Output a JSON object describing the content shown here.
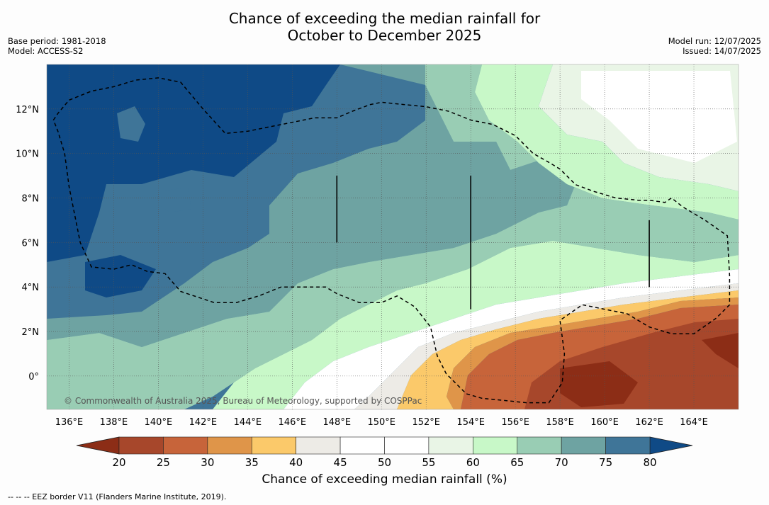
{
  "title": {
    "line1": "Chance of exceeding the median rainfall for",
    "line2": "October to December 2025"
  },
  "meta_left": {
    "base_period": "Base period: 1981-2018",
    "model": "Model: ACCESS-S2"
  },
  "meta_right": {
    "model_run": "Model run: 12/07/2025",
    "issued": "Issued: 14/07/2025"
  },
  "map": {
    "lon_range": [
      135.0,
      166.0
    ],
    "lat_range": [
      -1.5,
      14.0
    ],
    "lat_labels": [
      {
        "value": 0,
        "text": "0°"
      },
      {
        "value": 2,
        "text": "2°N"
      },
      {
        "value": 4,
        "text": "4°N"
      },
      {
        "value": 6,
        "text": "6°N"
      },
      {
        "value": 8,
        "text": "8°N"
      },
      {
        "value": 10,
        "text": "10°N"
      },
      {
        "value": 12,
        "text": "12°N"
      }
    ],
    "lon_labels": [
      {
        "value": 136,
        "text": "136°E"
      },
      {
        "value": 138,
        "text": "138°E"
      },
      {
        "value": 140,
        "text": "140°E"
      },
      {
        "value": 142,
        "text": "142°E"
      },
      {
        "value": 144,
        "text": "144°E"
      },
      {
        "value": 146,
        "text": "146°E"
      },
      {
        "value": 148,
        "text": "148°E"
      },
      {
        "value": 150,
        "text": "150°E"
      },
      {
        "value": 152,
        "text": "152°E"
      },
      {
        "value": 154,
        "text": "154°E"
      },
      {
        "value": 156,
        "text": "156°E"
      },
      {
        "value": 158,
        "text": "158°E"
      },
      {
        "value": 160,
        "text": "160°E"
      },
      {
        "value": 162,
        "text": "162°E"
      },
      {
        "value": 164,
        "text": "164°E"
      }
    ],
    "gridlines": "dotted",
    "copyright": "© Commonwealth of Australia 2025, Bureau of Meteorology, supported by COSPPac",
    "eez_boundary_lonlat": [
      [
        135.3,
        11.5
      ],
      [
        135.5,
        11.8
      ],
      [
        136.0,
        12.4
      ],
      [
        137.0,
        12.8
      ],
      [
        138.0,
        13.0
      ],
      [
        139.0,
        13.3
      ],
      [
        140.0,
        13.4
      ],
      [
        141.0,
        13.2
      ],
      [
        142.0,
        12.0
      ],
      [
        143.0,
        10.9
      ],
      [
        144.0,
        11.0
      ],
      [
        145.0,
        11.2
      ],
      [
        146.0,
        11.4
      ],
      [
        147.0,
        11.6
      ],
      [
        148.0,
        11.6
      ],
      [
        148.7,
        11.9
      ],
      [
        149.5,
        12.2
      ],
      [
        150.0,
        12.3
      ],
      [
        151.0,
        12.2
      ],
      [
        152.0,
        12.1
      ],
      [
        153.0,
        11.9
      ],
      [
        154.0,
        11.5
      ],
      [
        155.0,
        11.3
      ],
      [
        156.0,
        10.8
      ],
      [
        156.8,
        10.0
      ],
      [
        157.5,
        9.6
      ],
      [
        158.0,
        9.3
      ],
      [
        158.7,
        8.6
      ],
      [
        159.5,
        8.3
      ],
      [
        160.5,
        8.0
      ],
      [
        161.5,
        7.9
      ],
      [
        162.0,
        7.9
      ],
      [
        162.7,
        7.8
      ],
      [
        163.0,
        8.0
      ],
      [
        163.5,
        7.6
      ],
      [
        164.5,
        7.0
      ],
      [
        165.5,
        6.3
      ],
      [
        165.6,
        4.5
      ],
      [
        165.6,
        3.2
      ],
      [
        165.0,
        2.6
      ],
      [
        164.0,
        1.9
      ],
      [
        163.0,
        1.9
      ],
      [
        162.0,
        2.2
      ],
      [
        161.0,
        2.8
      ],
      [
        160.0,
        3.0
      ],
      [
        159.0,
        3.2
      ],
      [
        158.0,
        2.5
      ],
      [
        158.2,
        1.0
      ],
      [
        158.1,
        -0.3
      ],
      [
        157.5,
        -1.2
      ],
      [
        156.5,
        -1.2
      ],
      [
        155.5,
        -1.1
      ],
      [
        154.5,
        -1.0
      ],
      [
        153.8,
        -0.8
      ],
      [
        152.9,
        0.1
      ],
      [
        152.5,
        0.9
      ],
      [
        152.2,
        2.2
      ],
      [
        151.5,
        3.1
      ],
      [
        150.7,
        3.6
      ],
      [
        150.0,
        3.3
      ],
      [
        149.0,
        3.3
      ],
      [
        148.0,
        3.7
      ],
      [
        147.5,
        4.0
      ],
      [
        146.5,
        4.0
      ],
      [
        145.5,
        4.0
      ],
      [
        144.5,
        3.6
      ],
      [
        143.5,
        3.3
      ],
      [
        142.5,
        3.3
      ],
      [
        141.0,
        3.8
      ],
      [
        140.3,
        4.6
      ],
      [
        139.5,
        4.7
      ],
      [
        138.8,
        5.0
      ],
      [
        138.0,
        4.8
      ],
      [
        137.0,
        4.9
      ],
      [
        136.5,
        6.0
      ],
      [
        136.0,
        8.5
      ],
      [
        135.8,
        10.0
      ],
      [
        135.5,
        11.0
      ],
      [
        135.3,
        11.5
      ]
    ],
    "eez_segments_lonlat": [
      [
        [
          148.0,
          9.0
        ],
        [
          148.0,
          6.0
        ]
      ],
      [
        [
          154.0,
          9.0
        ],
        [
          154.0,
          3.0
        ]
      ],
      [
        [
          162.0,
          7.0
        ],
        [
          162.0,
          4.0
        ]
      ]
    ]
  },
  "colorbar": {
    "title": "Chance of exceeding median rainfall (%)",
    "ticks": [
      "20",
      "25",
      "30",
      "35",
      "40",
      "45",
      "50",
      "55",
      "60",
      "65",
      "70",
      "75",
      "80"
    ],
    "under_color": "#8c2d16",
    "over_color": "#0f4a86",
    "colors": [
      "#a7472b",
      "#c7643a",
      "#df9549",
      "#fbc96a",
      "#edebe6",
      "#ffffff",
      "#ffffff",
      "#e9f5e6",
      "#c8f8c8",
      "#99cdb4",
      "#6ea3a2",
      "#3f7598"
    ]
  },
  "footer": "--  --  -- EEZ border V11 (Flanders Marine Institute, 2019)."
}
